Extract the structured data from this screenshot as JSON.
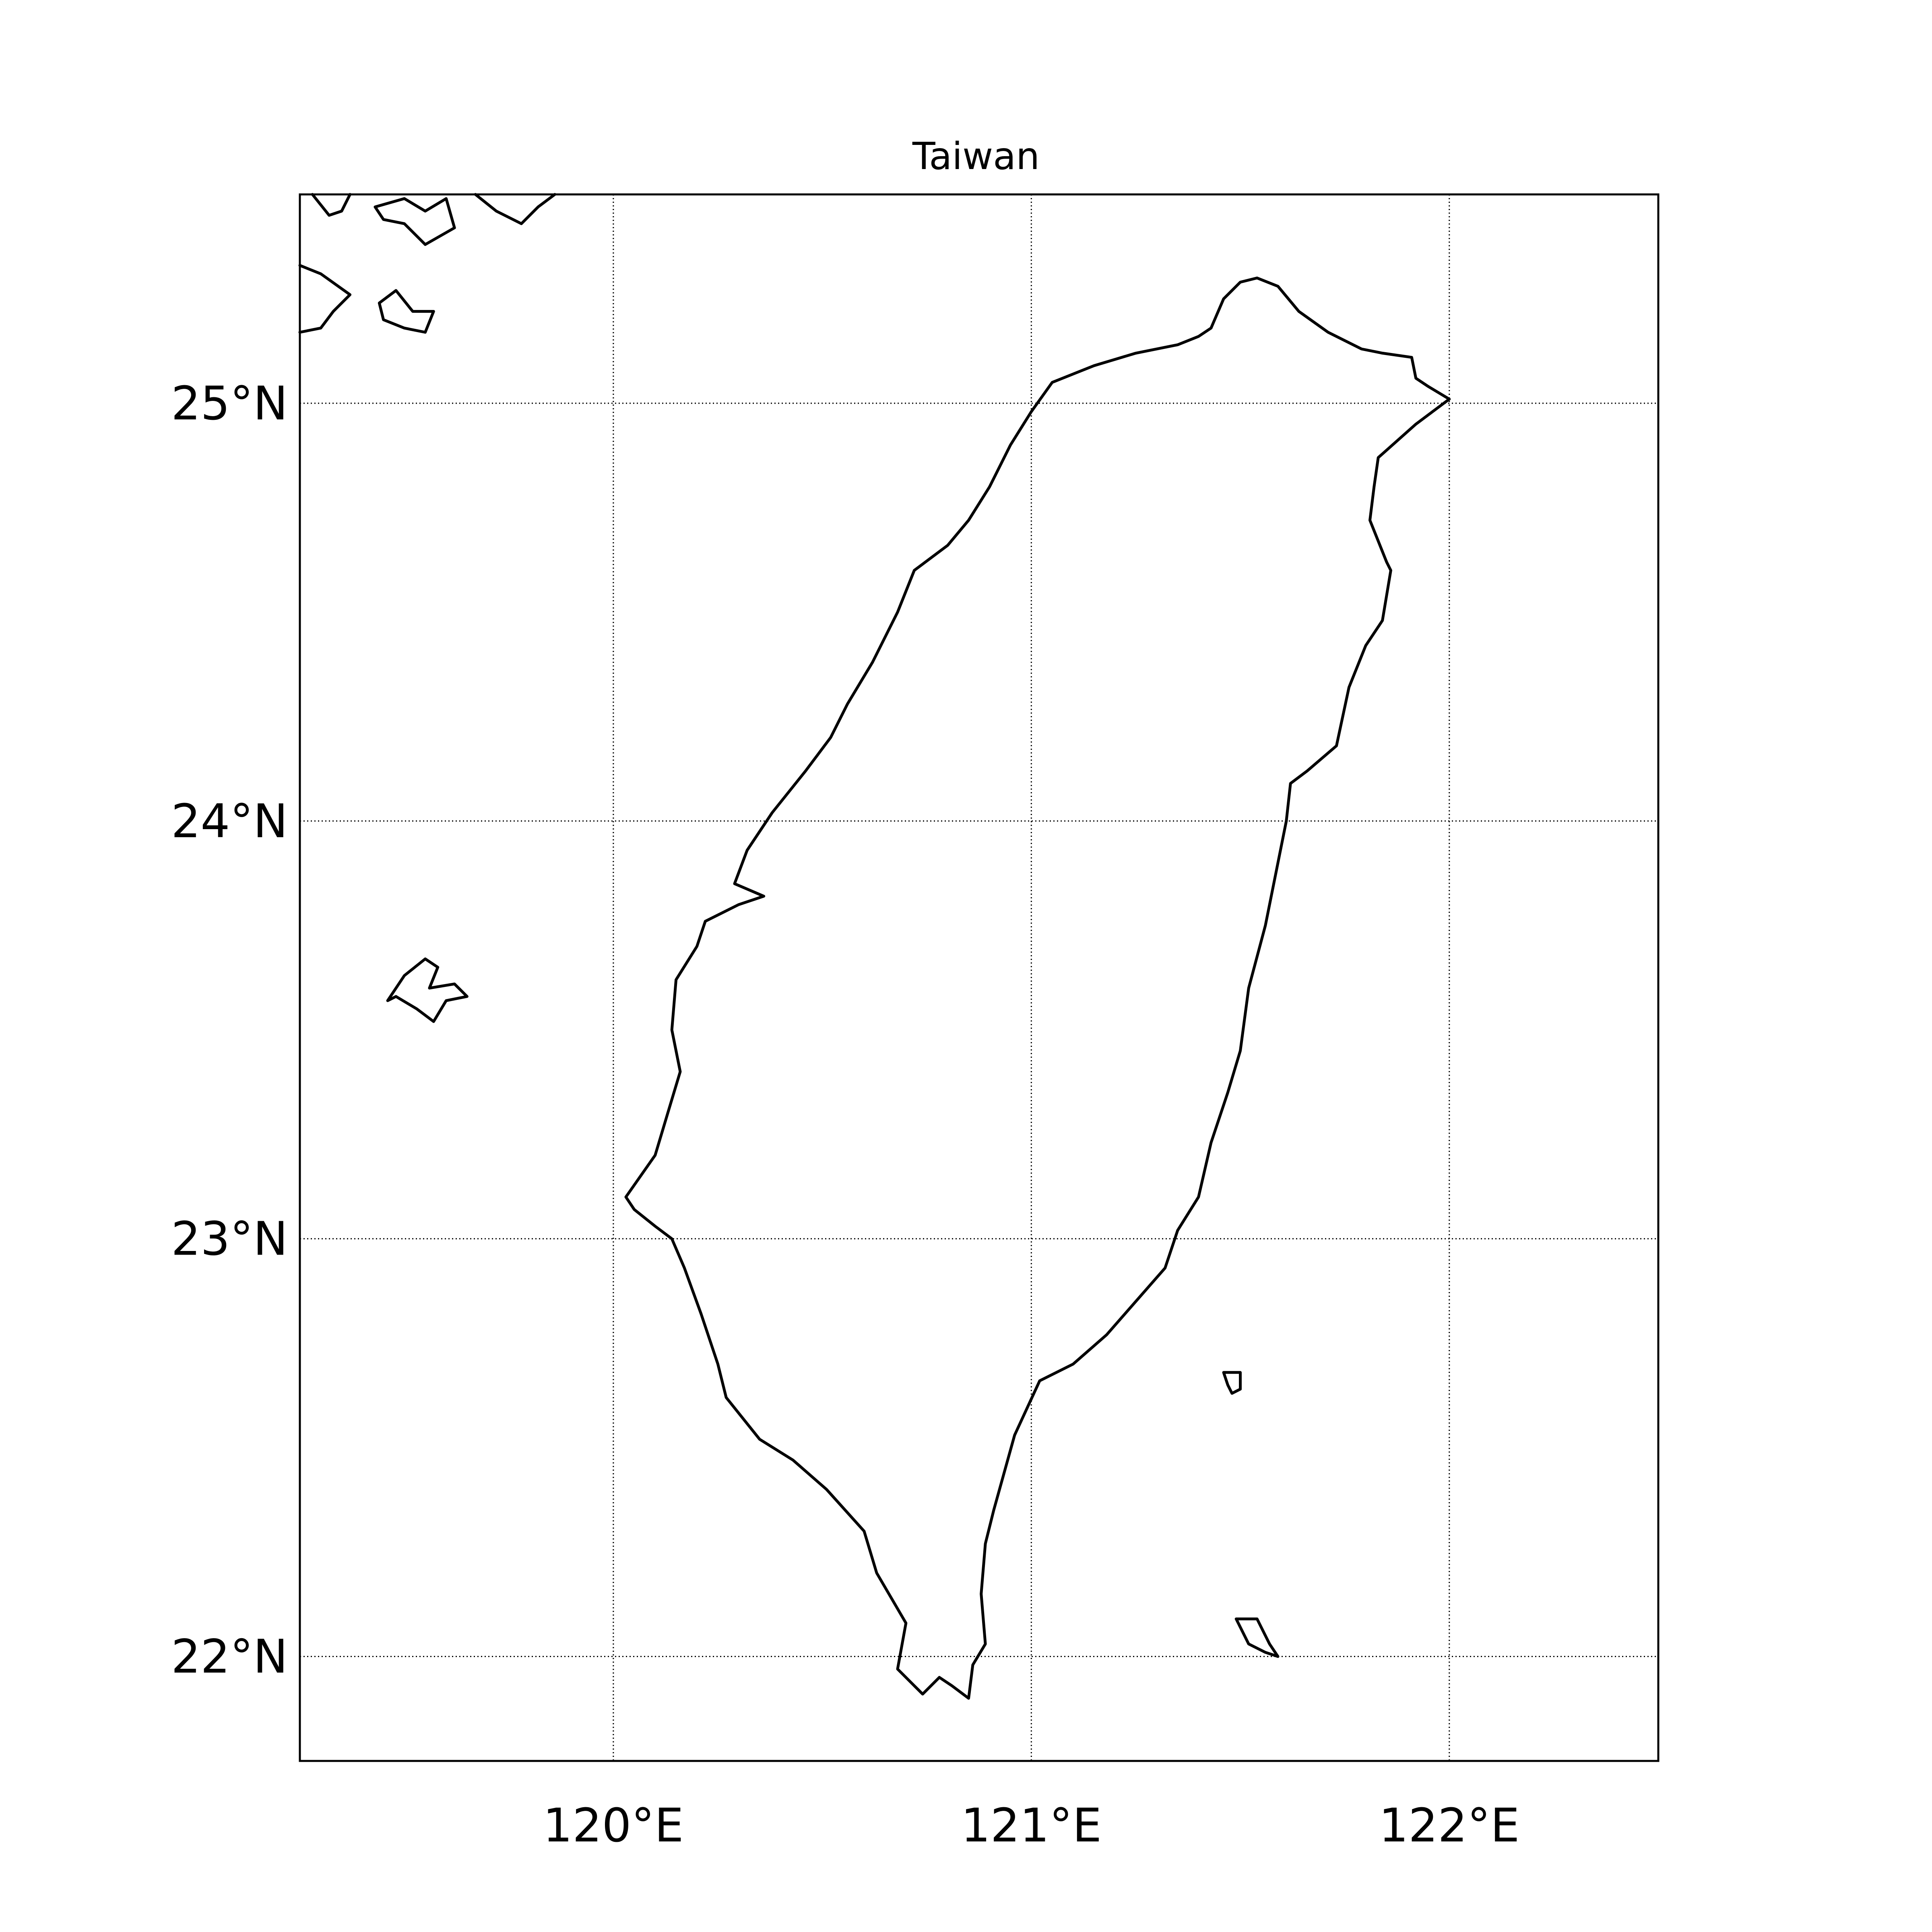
{
  "map": {
    "title": "Taiwan",
    "projection": "equirectangular",
    "extent": {
      "lon_min": 119.25,
      "lon_max": 122.5,
      "lat_min": 21.75,
      "lat_max": 25.5
    },
    "meridians": [
      {
        "lon": 120,
        "label": "120°E"
      },
      {
        "lon": 121,
        "label": "121°E"
      },
      {
        "lon": 122,
        "label": "122°E"
      }
    ],
    "parallels": [
      {
        "lat": 22,
        "label": "22°N"
      },
      {
        "lat": 23,
        "label": "23°N"
      },
      {
        "lat": 24,
        "label": "24°N"
      },
      {
        "lat": 25,
        "label": "25°N"
      }
    ],
    "colors": {
      "coastline": "#000000",
      "grid": "#000000",
      "background": "#ffffff"
    }
  },
  "features": [
    {
      "name": "taiwan-island",
      "closed": true,
      "coords": [
        [
          121.54,
          25.3
        ],
        [
          121.59,
          25.28
        ],
        [
          121.64,
          25.22
        ],
        [
          121.71,
          25.17
        ],
        [
          121.79,
          25.13
        ],
        [
          121.84,
          25.12
        ],
        [
          121.91,
          25.11
        ],
        [
          121.92,
          25.06
        ],
        [
          121.95,
          25.04
        ],
        [
          122.0,
          25.01
        ],
        [
          121.96,
          24.98
        ],
        [
          121.92,
          24.95
        ],
        [
          121.83,
          24.87
        ],
        [
          121.82,
          24.8
        ],
        [
          121.81,
          24.72
        ],
        [
          121.85,
          24.62
        ],
        [
          121.86,
          24.6
        ],
        [
          121.84,
          24.48
        ],
        [
          121.8,
          24.42
        ],
        [
          121.76,
          24.32
        ],
        [
          121.73,
          24.18
        ],
        [
          121.66,
          24.12
        ],
        [
          121.62,
          24.09
        ],
        [
          121.61,
          24.0
        ],
        [
          121.59,
          23.9
        ],
        [
          121.56,
          23.75
        ],
        [
          121.52,
          23.6
        ],
        [
          121.5,
          23.45
        ],
        [
          121.47,
          23.35
        ],
        [
          121.43,
          23.23
        ],
        [
          121.4,
          23.1
        ],
        [
          121.35,
          23.02
        ],
        [
          121.32,
          22.93
        ],
        [
          121.25,
          22.85
        ],
        [
          121.18,
          22.77
        ],
        [
          121.1,
          22.7
        ],
        [
          121.02,
          22.66
        ],
        [
          120.96,
          22.53
        ],
        [
          120.91,
          22.35
        ],
        [
          120.89,
          22.27
        ],
        [
          120.88,
          22.15
        ],
        [
          120.89,
          22.03
        ],
        [
          120.86,
          21.98
        ],
        [
          120.85,
          21.9
        ],
        [
          120.81,
          21.93
        ],
        [
          120.78,
          21.95
        ],
        [
          120.74,
          21.91
        ],
        [
          120.72,
          21.93
        ],
        [
          120.68,
          21.97
        ],
        [
          120.7,
          22.08
        ],
        [
          120.63,
          22.2
        ],
        [
          120.6,
          22.3
        ],
        [
          120.51,
          22.4
        ],
        [
          120.43,
          22.47
        ],
        [
          120.35,
          22.52
        ],
        [
          120.27,
          22.62
        ],
        [
          120.25,
          22.7
        ],
        [
          120.21,
          22.82
        ],
        [
          120.17,
          22.93
        ],
        [
          120.14,
          23.0
        ],
        [
          120.1,
          23.03
        ],
        [
          120.05,
          23.07
        ],
        [
          120.03,
          23.1
        ],
        [
          120.1,
          23.2
        ],
        [
          120.13,
          23.3
        ],
        [
          120.16,
          23.4
        ],
        [
          120.14,
          23.5
        ],
        [
          120.15,
          23.62
        ],
        [
          120.2,
          23.7
        ],
        [
          120.22,
          23.76
        ],
        [
          120.3,
          23.8
        ],
        [
          120.36,
          23.82
        ],
        [
          120.29,
          23.85
        ],
        [
          120.32,
          23.93
        ],
        [
          120.38,
          24.02
        ],
        [
          120.46,
          24.12
        ],
        [
          120.52,
          24.2
        ],
        [
          120.56,
          24.28
        ],
        [
          120.62,
          24.38
        ],
        [
          120.68,
          24.5
        ],
        [
          120.72,
          24.6
        ],
        [
          120.8,
          24.66
        ],
        [
          120.85,
          24.72
        ],
        [
          120.9,
          24.8
        ],
        [
          120.95,
          24.9
        ],
        [
          121.0,
          24.98
        ],
        [
          121.05,
          25.05
        ],
        [
          121.15,
          25.09
        ],
        [
          121.25,
          25.12
        ],
        [
          121.35,
          25.14
        ],
        [
          121.4,
          25.16
        ],
        [
          121.43,
          25.18
        ],
        [
          121.46,
          25.25
        ],
        [
          121.5,
          25.29
        ],
        [
          121.54,
          25.3
        ]
      ]
    },
    {
      "name": "penghu-islands",
      "closed": true,
      "coords": [
        [
          119.5,
          23.63
        ],
        [
          119.55,
          23.67
        ],
        [
          119.58,
          23.65
        ],
        [
          119.56,
          23.6
        ],
        [
          119.62,
          23.61
        ],
        [
          119.65,
          23.58
        ],
        [
          119.6,
          23.57
        ],
        [
          119.57,
          23.52
        ],
        [
          119.53,
          23.55
        ],
        [
          119.48,
          23.58
        ],
        [
          119.46,
          23.57
        ],
        [
          119.5,
          23.63
        ]
      ]
    },
    {
      "name": "green-island",
      "closed": true,
      "coords": [
        [
          121.46,
          22.68
        ],
        [
          121.5,
          22.68
        ],
        [
          121.5,
          22.64
        ],
        [
          121.48,
          22.63
        ],
        [
          121.47,
          22.65
        ],
        [
          121.46,
          22.68
        ]
      ]
    },
    {
      "name": "orchid-island",
      "closed": true,
      "coords": [
        [
          121.49,
          22.09
        ],
        [
          121.54,
          22.09
        ],
        [
          121.57,
          22.03
        ],
        [
          121.59,
          22.0
        ],
        [
          121.56,
          22.01
        ],
        [
          121.52,
          22.03
        ],
        [
          121.49,
          22.09
        ]
      ]
    },
    {
      "name": "mainland-coast-north",
      "closed": false,
      "coords": [
        [
          119.28,
          25.5
        ],
        [
          119.32,
          25.45
        ],
        [
          119.35,
          25.46
        ],
        [
          119.37,
          25.5
        ]
      ]
    },
    {
      "name": "mainland-islet-north",
      "closed": true,
      "coords": [
        [
          119.43,
          25.47
        ],
        [
          119.5,
          25.49
        ],
        [
          119.55,
          25.46
        ],
        [
          119.6,
          25.49
        ],
        [
          119.62,
          25.42
        ],
        [
          119.55,
          25.38
        ],
        [
          119.5,
          25.43
        ],
        [
          119.45,
          25.44
        ],
        [
          119.43,
          25.47
        ]
      ]
    },
    {
      "name": "mainland-coast-northeast",
      "closed": false,
      "coords": [
        [
          119.67,
          25.5
        ],
        [
          119.72,
          25.46
        ],
        [
          119.78,
          25.43
        ],
        [
          119.82,
          25.47
        ],
        [
          119.86,
          25.5
        ]
      ]
    },
    {
      "name": "mainland-coast-west",
      "closed": false,
      "coords": [
        [
          119.25,
          25.33
        ],
        [
          119.3,
          25.31
        ],
        [
          119.37,
          25.26
        ],
        [
          119.33,
          25.22
        ],
        [
          119.3,
          25.18
        ],
        [
          119.25,
          25.17
        ]
      ]
    },
    {
      "name": "mainland-islet-west",
      "closed": true,
      "coords": [
        [
          119.44,
          25.24
        ],
        [
          119.48,
          25.27
        ],
        [
          119.52,
          25.22
        ],
        [
          119.57,
          25.22
        ],
        [
          119.55,
          25.17
        ],
        [
          119.5,
          25.18
        ],
        [
          119.45,
          25.2
        ],
        [
          119.44,
          25.24
        ]
      ]
    }
  ]
}
